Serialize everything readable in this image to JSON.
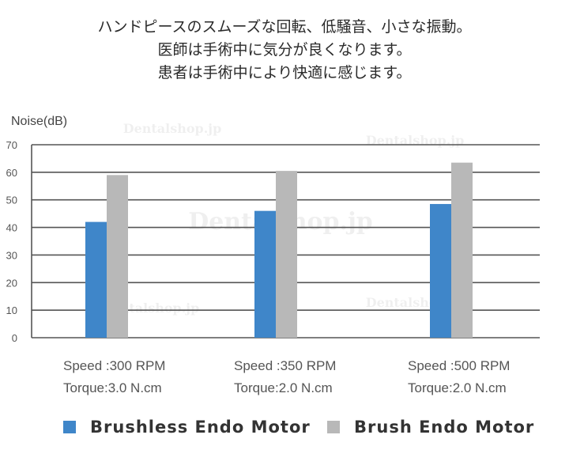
{
  "heading": {
    "lines": [
      "ハンドピースのスムーズな回転、低騒音、小さな振動。",
      "医師は手術中に気分が良くなります。",
      "患者は手術中により快適に感じます。"
    ]
  },
  "watermark": "Dentalshop.jp",
  "colors": {
    "brushless": "#3f86c9",
    "brush": "#b8b8b8",
    "grid": "#555555",
    "text": "#555555"
  },
  "chart_data": {
    "type": "bar",
    "ylabel": "Noise(dB)",
    "ylim": [
      0,
      70
    ],
    "yticks": [
      0,
      10,
      20,
      30,
      40,
      50,
      60,
      70
    ],
    "grid": true,
    "legend_placement": "bottom",
    "categories": [
      [
        "Speed :300 RPM",
        "Torque:3.0 N.cm"
      ],
      [
        "Speed :350 RPM",
        "Torque:2.0 N.cm"
      ],
      [
        "Speed :500 RPM",
        "Torque:2.0 N.cm"
      ]
    ],
    "series": [
      {
        "name": "Brushless Endo Motor",
        "values": [
          42,
          46,
          48.5
        ]
      },
      {
        "name": "Brush Endo Motor",
        "values": [
          59,
          60.5,
          63.5
        ]
      }
    ]
  }
}
